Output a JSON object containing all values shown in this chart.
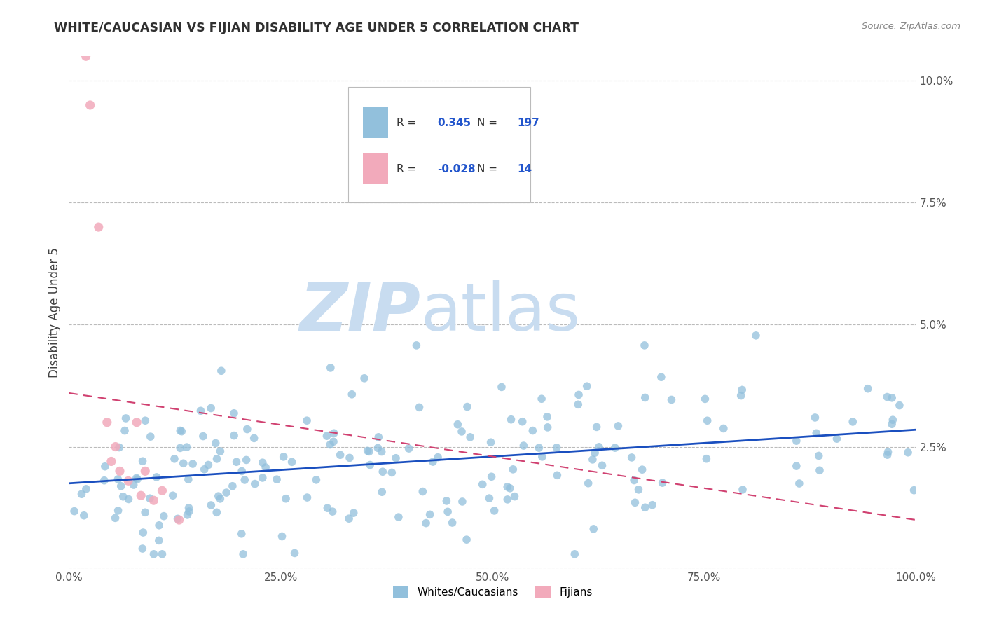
{
  "title": "WHITE/CAUCASIAN VS FIJIAN DISABILITY AGE UNDER 5 CORRELATION CHART",
  "source": "Source: ZipAtlas.com",
  "ylabel": "Disability Age Under 5",
  "watermark_zip": "ZIP",
  "watermark_atlas": "atlas",
  "xlim": [
    0.0,
    1.0
  ],
  "ylim": [
    0.0,
    0.105
  ],
  "xtick_vals": [
    0.0,
    0.25,
    0.5,
    0.75,
    1.0
  ],
  "xtick_labels": [
    "0.0%",
    "25.0%",
    "50.0%",
    "75.0%",
    "100.0%"
  ],
  "ytick_vals": [
    0.0,
    0.025,
    0.05,
    0.075,
    0.1
  ],
  "ytick_labels": [
    "",
    "2.5%",
    "5.0%",
    "7.5%",
    "10.0%"
  ],
  "blue_R": 0.345,
  "blue_N": 197,
  "pink_R": -0.028,
  "pink_N": 14,
  "blue_dot_color": "#92C0DC",
  "pink_dot_color": "#F2AABB",
  "blue_line_color": "#1A4FBF",
  "pink_line_color": "#D04070",
  "background_color": "#FFFFFF",
  "grid_color": "#BBBBBB",
  "title_color": "#303030",
  "source_color": "#888888",
  "legend_R_color": "#2255CC",
  "legend_box_edge": "#BBBBBB",
  "watermark_color": "#C8DCF0",
  "blue_trend_y0": 0.0175,
  "blue_trend_y1": 0.0285,
  "pink_trend_y0": 0.036,
  "pink_trend_y1": 0.01
}
